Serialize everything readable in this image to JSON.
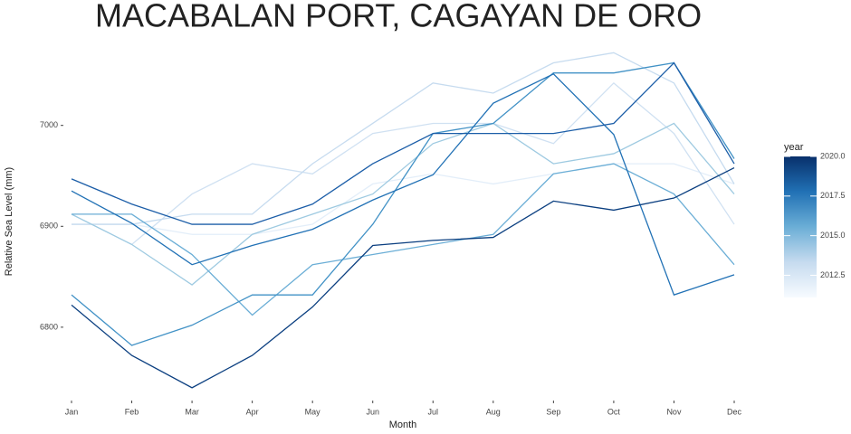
{
  "chart_data": {
    "type": "line",
    "title": "MACABALAN PORT, CAGAYAN DE ORO",
    "x_label": "Month",
    "y_label": "Relative Sea Level (mm)",
    "categories": [
      "Jan",
      "Feb",
      "Mar",
      "Apr",
      "May",
      "Jun",
      "Jul",
      "Aug",
      "Sep",
      "Oct",
      "Nov",
      "Dec"
    ],
    "ylim": [
      6730,
      7075
    ],
    "yticks": [
      6800,
      6900,
      7000
    ],
    "grid": false,
    "series": [
      {
        "color": "#e3eef9",
        "values": [
          6902,
          6902,
          6892,
          6892,
          6902,
          6942,
          6952,
          6942,
          6952,
          6962,
          6962,
          6942
        ]
      },
      {
        "color": "#d0e1f2",
        "values": [
          6912,
          6882,
          6932,
          6962,
          6952,
          6992,
          7002,
          7002,
          6982,
          7042,
          6992,
          6902
        ]
      },
      {
        "color": "#c6dbef",
        "values": [
          6902,
          6902,
          6912,
          6912,
          6962,
          7002,
          7042,
          7032,
          7062,
          7072,
          7042,
          6942
        ]
      },
      {
        "color": "#9ecae1",
        "values": [
          6912,
          6882,
          6842,
          6892,
          6912,
          6932,
          6982,
          7002,
          6962,
          6972,
          7002,
          6932
        ]
      },
      {
        "color": "#6baed6",
        "values": [
          6912,
          6912,
          6872,
          6812,
          6862,
          6872,
          6882,
          6892,
          6952,
          6962,
          6932,
          6862
        ]
      },
      {
        "color": "#4292c6",
        "values": [
          6832,
          6782,
          6802,
          6832,
          6832,
          6902,
          6992,
          7002,
          7052,
          7052,
          7062,
          6967
        ]
      },
      {
        "color": "#2171b5",
        "values": [
          6935,
          6903,
          6862,
          6881,
          6897,
          6926,
          6951,
          7022,
          7051,
          6991,
          6832,
          6852
        ]
      },
      {
        "color": "#1c5ea8",
        "values": [
          6947,
          6922,
          6902,
          6902,
          6922,
          6962,
          6992,
          6992,
          6992,
          7002,
          7062,
          6962
        ]
      },
      {
        "color": "#0b3f80",
        "values": [
          6822,
          6772,
          6740,
          6772,
          6820,
          6881,
          6886,
          6889,
          6925,
          6916,
          6928,
          6958
        ]
      }
    ],
    "colorbar": {
      "title": "year",
      "lim": [
        2011.1,
        2020
      ],
      "colors": [
        "#f7fbff",
        "#c6dbef",
        "#6baed6",
        "#2171b5",
        "#08306b"
      ],
      "ticks": [
        2012.5,
        {
          "value": 2015,
          "label": "2015.0"
        },
        2017.5,
        {
          "value": 2020,
          "label": "2020.0"
        }
      ]
    }
  }
}
